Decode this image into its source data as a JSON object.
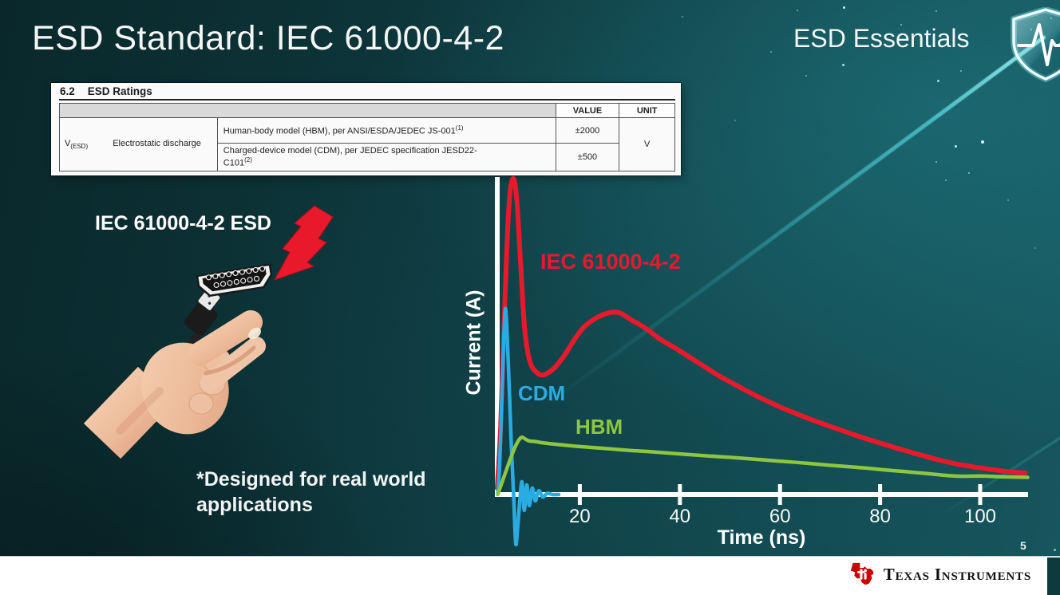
{
  "slide": {
    "title": "ESD Standard: IEC 61000-4-2",
    "program_badge": "ESD Essentials",
    "page_number": "5"
  },
  "ratings_table": {
    "section_number": "6.2",
    "section_title": "ESD Ratings",
    "columns": {
      "value": "VALUE",
      "unit": "UNIT"
    },
    "parameter_symbol": {
      "base": "V",
      "sub": "(ESD)"
    },
    "parameter_name": "Electrostatic discharge",
    "rows": [
      {
        "description": "Human-body model (HBM), per ANSI/ESDA/JEDEC JS-001",
        "footnote": "(1)",
        "value": "±2000"
      },
      {
        "description": "Charged-device model (CDM), per JEDEC specification JESD22-C101",
        "footnote": "(2)",
        "value": "±500"
      }
    ],
    "unit": "V"
  },
  "illustration": {
    "caption": "IEC 61000-4-2 ESD",
    "note": "*Designed for real world applications",
    "elements": [
      "hand-holding-hdmi-connector",
      "red-lightning-bolt"
    ]
  },
  "footer": {
    "logo_text": "Texas Instruments",
    "logo_icon": "ti-texas-bug",
    "logo_red": "#cc0000"
  },
  "colors": {
    "background_dark_teal": "#0c3135",
    "background_light_teal": "#16565e",
    "beam_cyan": "#63d8e2",
    "axis_white": "#ffffff",
    "iec_red": "#e8192b",
    "cdm_blue": "#2aabe2",
    "hbm_green": "#8dc63f"
  },
  "chart_data": {
    "type": "line",
    "title": "",
    "xlabel": "Time (ns)",
    "ylabel": "Current (A)",
    "xlim": [
      0,
      112
    ],
    "xticks": [
      20,
      40,
      60,
      80,
      100
    ],
    "ylim": [
      -0.18,
      1.05
    ],
    "grid": false,
    "legend_position": "inline-labels",
    "y_axis_note": "no numeric y ticks shown; current values normalized to IEC peak = 1.0",
    "series": [
      {
        "name": "IEC 61000-4-2",
        "color": "#e8192b",
        "points": [
          [
            3.5,
            0.02
          ],
          [
            4.2,
            0.22
          ],
          [
            5.0,
            0.6
          ],
          [
            5.8,
            0.9
          ],
          [
            6.6,
            0.995
          ],
          [
            7.4,
            0.93
          ],
          [
            8.2,
            0.72
          ],
          [
            9.0,
            0.52
          ],
          [
            10,
            0.42
          ],
          [
            11.5,
            0.383
          ],
          [
            13,
            0.378
          ],
          [
            15,
            0.4
          ],
          [
            17,
            0.44
          ],
          [
            19,
            0.49
          ],
          [
            21,
            0.53
          ],
          [
            23.5,
            0.558
          ],
          [
            26,
            0.573
          ],
          [
            28,
            0.572
          ],
          [
            30,
            0.553
          ],
          [
            33,
            0.525
          ],
          [
            36,
            0.49
          ],
          [
            39,
            0.462
          ],
          [
            42,
            0.432
          ],
          [
            45,
            0.402
          ],
          [
            48,
            0.372
          ],
          [
            52,
            0.338
          ],
          [
            56,
            0.305
          ],
          [
            60,
            0.276
          ],
          [
            64,
            0.25
          ],
          [
            68,
            0.226
          ],
          [
            72,
            0.204
          ],
          [
            76,
            0.182
          ],
          [
            80,
            0.162
          ],
          [
            84,
            0.143
          ],
          [
            88,
            0.125
          ],
          [
            92,
            0.108
          ],
          [
            96,
            0.094
          ],
          [
            100,
            0.084
          ],
          [
            104,
            0.075
          ],
          [
            107,
            0.07
          ],
          [
            109,
            0.068
          ]
        ]
      },
      {
        "name": "CDM",
        "color": "#2aabe2",
        "points": [
          [
            3.6,
            0.0
          ],
          [
            4.0,
            0.1
          ],
          [
            4.5,
            0.34
          ],
          [
            5.1,
            0.585
          ],
          [
            5.7,
            0.42
          ],
          [
            6.3,
            0.16
          ],
          [
            6.8,
            -0.01
          ],
          [
            7.2,
            -0.155
          ],
          [
            7.6,
            -0.1
          ],
          [
            8.0,
            -0.02
          ],
          [
            8.45,
            0.04
          ],
          [
            8.9,
            -0.05
          ],
          [
            9.4,
            0.03
          ],
          [
            9.9,
            -0.035
          ],
          [
            10.5,
            0.02
          ],
          [
            11.1,
            -0.02
          ],
          [
            11.8,
            0.012
          ],
          [
            12.6,
            -0.008
          ],
          [
            13.5,
            0.004
          ],
          [
            14.5,
            0.0
          ],
          [
            15.8,
            0.0
          ]
        ]
      },
      {
        "name": "HBM",
        "color": "#8dc63f",
        "points": [
          [
            3.6,
            0.0
          ],
          [
            4.5,
            0.04
          ],
          [
            5.5,
            0.085
          ],
          [
            6.5,
            0.128
          ],
          [
            7.5,
            0.163
          ],
          [
            8.3,
            0.18
          ],
          [
            9.0,
            0.176
          ],
          [
            9.8,
            0.169
          ],
          [
            11,
            0.167
          ],
          [
            13,
            0.162
          ],
          [
            16,
            0.157
          ],
          [
            20,
            0.151
          ],
          [
            25,
            0.145
          ],
          [
            30,
            0.139
          ],
          [
            35,
            0.134
          ],
          [
            40,
            0.128
          ],
          [
            45,
            0.122
          ],
          [
            50,
            0.117
          ],
          [
            55,
            0.111
          ],
          [
            60,
            0.105
          ],
          [
            65,
            0.099
          ],
          [
            70,
            0.092
          ],
          [
            75,
            0.086
          ],
          [
            80,
            0.079
          ],
          [
            85,
            0.072
          ],
          [
            90,
            0.065
          ],
          [
            95,
            0.058
          ],
          [
            100,
            0.058
          ],
          [
            104,
            0.056
          ],
          [
            107,
            0.055
          ],
          [
            109.5,
            0.054
          ]
        ]
      }
    ]
  }
}
